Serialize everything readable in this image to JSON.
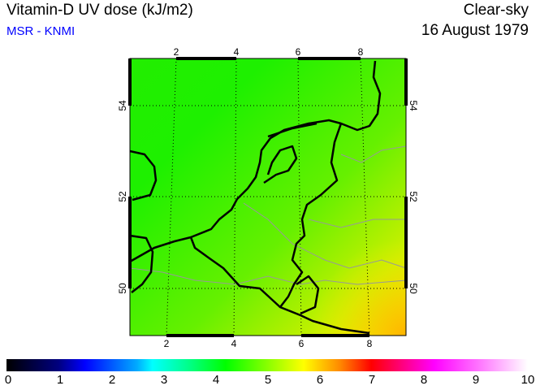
{
  "header": {
    "title": "Vitamin-D UV dose (kJ/m2)",
    "source": "MSR - KNMI",
    "condition": "Clear-sky",
    "date": "16 August 1979"
  },
  "map": {
    "lon_ticks_top": [
      "2",
      "4",
      "6",
      "8"
    ],
    "lon_ticks_bottom": [
      "2",
      "4",
      "6",
      "8"
    ],
    "lat_ticks_left": [
      "54",
      "52",
      "50"
    ],
    "lat_ticks_right": [
      "54",
      "52",
      "50"
    ],
    "field_colors": {
      "north_west": "#22ee00",
      "south_east": "#ffdd00"
    }
  },
  "colorbar": {
    "labels": [
      "0",
      "1",
      "2",
      "3",
      "4",
      "5",
      "6",
      "7",
      "8",
      "9",
      "10"
    ],
    "min": 0,
    "max": 10
  }
}
